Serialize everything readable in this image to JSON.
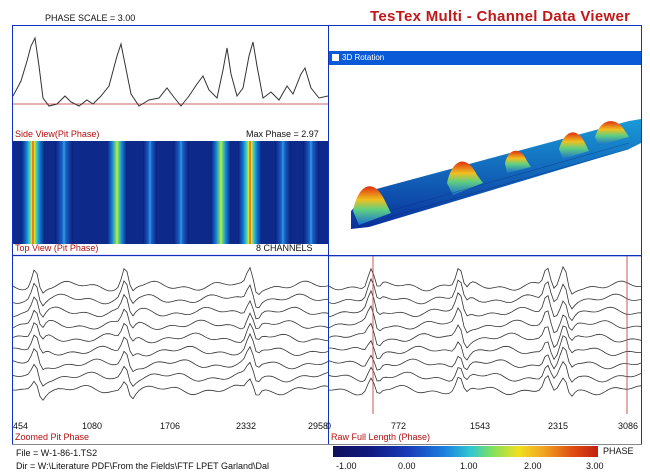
{
  "header": {
    "phase_scale": "PHASE SCALE = 3.00",
    "app_title": "TesTex  Multi - Channel  Data  Viewer"
  },
  "side_view": {
    "label": "Side View(Pit Phase)",
    "max_phase": "Max Phase = 2.97"
  },
  "top_view": {
    "label": "Top View (Pit Phase)",
    "channels": "8 CHANNELS"
  },
  "rotation_window": {
    "title": "3D Rotation"
  },
  "zoomed": {
    "label": "Zoomed Pit Phase",
    "ticks": [
      "454",
      "1080",
      "1706",
      "2332",
      "2958"
    ]
  },
  "raw": {
    "label": "Raw Full Length (Phase)",
    "ticks": [
      "0",
      "772",
      "1543",
      "2315",
      "3086"
    ]
  },
  "footer": {
    "file": "File = W-1-86-1.TS2",
    "dir": "Dir = W:\\Literature PDF\\From the Fields\\FTF LPET Garland\\Dal"
  },
  "colorbar": {
    "label": "PHASE",
    "ticks": [
      "-1.00",
      "0.00",
      "1.00",
      "2.00",
      "3.00"
    ]
  },
  "colors": {
    "frame_blue": "#1030c0",
    "label_red": "#b01010",
    "title_red": "#c01818",
    "window_bar": "#0a5ad8"
  }
}
